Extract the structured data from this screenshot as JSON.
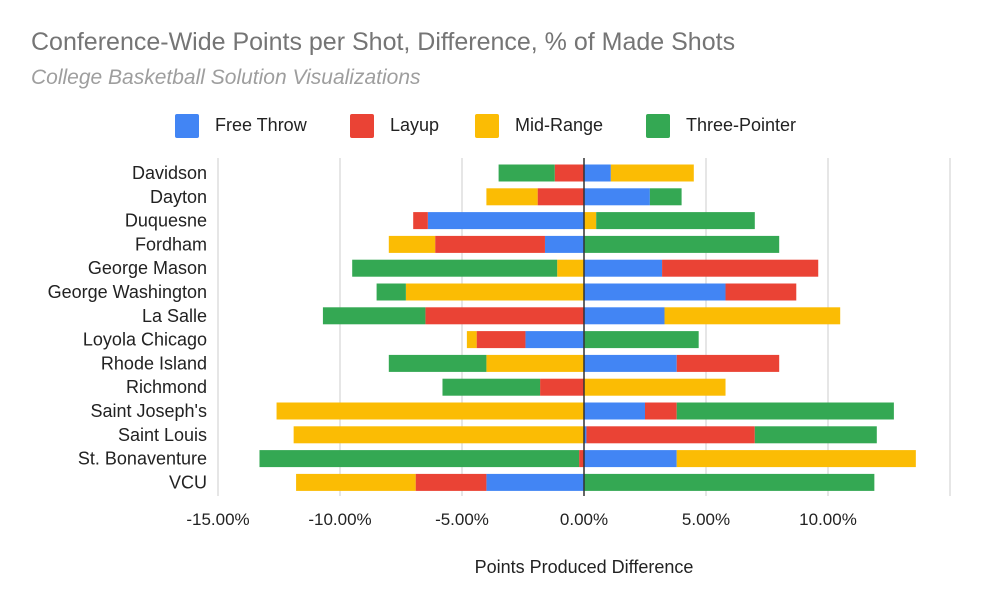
{
  "chart_data": {
    "type": "bar",
    "orientation": "horizontal",
    "stacked": true,
    "title": "Conference-Wide Points per Shot, Difference, % of Made Shots",
    "subtitle": "College Basketball Solution Visualizations",
    "xlabel": "Points Produced Difference",
    "ylabel": "",
    "xlim": [
      -15,
      15
    ],
    "xticks": [
      -15,
      -10,
      -5,
      0,
      5,
      10
    ],
    "xtick_labels": [
      "-15.00%",
      "-10.00%",
      "-5.00%",
      "0.00%",
      "5.00%",
      "10.00%"
    ],
    "grid": true,
    "legend_position": "top",
    "categories": [
      "Davidson",
      "Dayton",
      "Duquesne",
      "Fordham",
      "George Mason",
      "George Washington",
      "La Salle",
      "Loyola Chicago",
      "Rhode Island",
      "Richmond",
      "Saint Joseph's",
      "Saint Louis",
      "St. Bonaventure",
      "VCU"
    ],
    "series": [
      {
        "name": "Free Throw",
        "color": "#4285f4",
        "values": [
          1.1,
          2.7,
          -6.4,
          -1.6,
          3.2,
          5.8,
          3.3,
          -2.4,
          3.8,
          0.0,
          2.5,
          0.1,
          3.8,
          -4.0
        ]
      },
      {
        "name": "Layup",
        "color": "#ea4335",
        "values": [
          -1.2,
          -1.9,
          -0.6,
          -4.5,
          6.4,
          2.9,
          -6.5,
          -2.0,
          4.2,
          -1.8,
          1.3,
          6.9,
          -0.2,
          -2.9
        ]
      },
      {
        "name": "Mid-Range",
        "color": "#fbbc04",
        "values": [
          3.4,
          -2.1,
          0.5,
          -1.9,
          -1.1,
          -7.3,
          7.2,
          -0.4,
          -4.0,
          5.8,
          -12.6,
          -11.9,
          9.8,
          -4.9
        ]
      },
      {
        "name": "Three-Pointer",
        "color": "#34a853",
        "values": [
          -2.3,
          1.3,
          6.5,
          8.0,
          -8.4,
          -1.2,
          -4.2,
          4.7,
          -4.0,
          -4.0,
          8.9,
          5.0,
          -13.1,
          11.9
        ]
      }
    ]
  }
}
